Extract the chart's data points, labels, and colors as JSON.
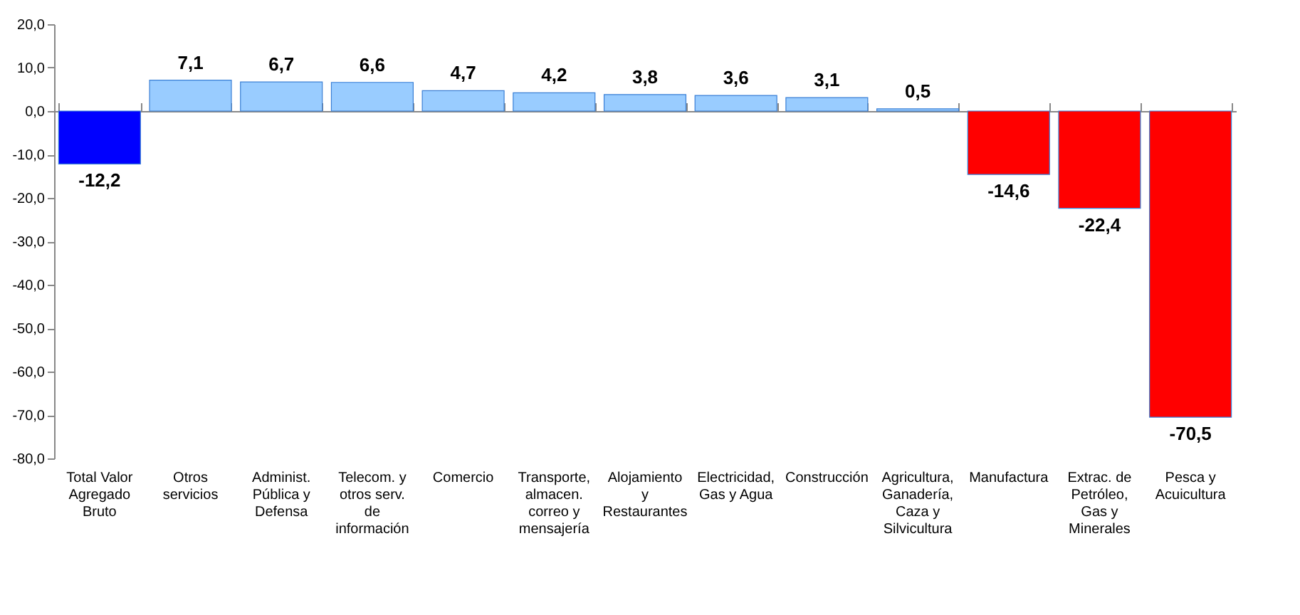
{
  "chart_data": {
    "type": "bar",
    "categories": [
      "Total Valor Agregado Bruto",
      "Otros servicios",
      "Administ. Pública y Defensa",
      "Telecom. y otros serv. de información",
      "Comercio",
      "Transporte, almacen. correo y mensajería",
      "Alojamiento y Restaurantes",
      "Electricidad, Gas y Agua",
      "Construcción",
      "Agricultura, Ganadería, Caza y Silvicultura",
      "Manufactura",
      "Extrac. de Petróleo, Gas y Minerales",
      "Pesca y Acuicultura"
    ],
    "values": [
      -12.2,
      7.1,
      6.7,
      6.6,
      4.7,
      4.2,
      3.8,
      3.6,
      3.1,
      0.5,
      -14.6,
      -22.4,
      -70.5
    ],
    "value_labels": [
      "-12,2",
      "7,1",
      "6,7",
      "6,6",
      "4,7",
      "4,2",
      "3,8",
      "3,6",
      "3,1",
      "0,5",
      "-14,6",
      "-22,4",
      "-70,5"
    ],
    "colors": [
      "#0000ff",
      "#99ccff",
      "#99ccff",
      "#99ccff",
      "#99ccff",
      "#99ccff",
      "#99ccff",
      "#99ccff",
      "#99ccff",
      "#99ccff",
      "#ff0000",
      "#ff0000",
      "#ff0000"
    ],
    "ylim": [
      -80,
      20
    ],
    "yticks": [
      {
        "value": 20,
        "label": "20,0"
      },
      {
        "value": 10,
        "label": "10,0"
      },
      {
        "value": 0,
        "label": "0,0"
      },
      {
        "value": -10,
        "label": "-10,0"
      },
      {
        "value": -20,
        "label": "-20,0"
      },
      {
        "value": -30,
        "label": "-30,0"
      },
      {
        "value": -40,
        "label": "-40,0"
      },
      {
        "value": -50,
        "label": "-50,0"
      },
      {
        "value": -60,
        "label": "-60,0"
      },
      {
        "value": -70,
        "label": "-70,0"
      },
      {
        "value": -80,
        "label": "-80,0"
      }
    ]
  }
}
